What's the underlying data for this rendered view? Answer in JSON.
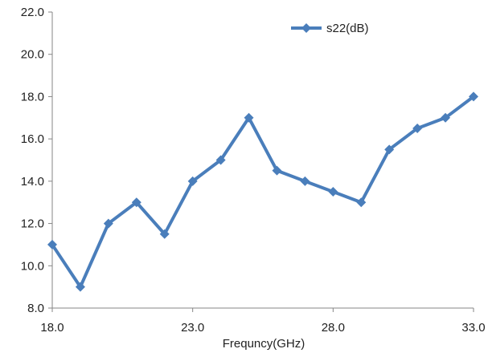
{
  "chart_data": {
    "type": "line",
    "title": "",
    "xlabel": "Frequncy(GHz)",
    "ylabel": "",
    "xlim": [
      18.0,
      33.0
    ],
    "ylim": [
      8.0,
      22.0
    ],
    "x_ticks": [
      "18.0",
      "23.0",
      "28.0",
      "33.0"
    ],
    "x_tick_values": [
      18,
      23,
      28,
      33
    ],
    "y_ticks": [
      "8.0",
      "10.0",
      "12.0",
      "14.0",
      "16.0",
      "18.0",
      "20.0",
      "22.0"
    ],
    "y_tick_values": [
      8,
      10,
      12,
      14,
      16,
      18,
      20,
      22
    ],
    "grid": false,
    "legend_position": "top-right",
    "series": [
      {
        "name": "s22(dB)",
        "color": "#4a7ebb",
        "marker": "diamond",
        "x": [
          18,
          19,
          20,
          21,
          22,
          23,
          24,
          25,
          26,
          27,
          28,
          29,
          30,
          31,
          32,
          33
        ],
        "y": [
          11.0,
          9.0,
          12.0,
          13.0,
          11.5,
          14.0,
          15.0,
          17.0,
          14.5,
          14.0,
          13.5,
          13.0,
          15.5,
          16.5,
          17.0,
          18.0
        ]
      }
    ]
  }
}
